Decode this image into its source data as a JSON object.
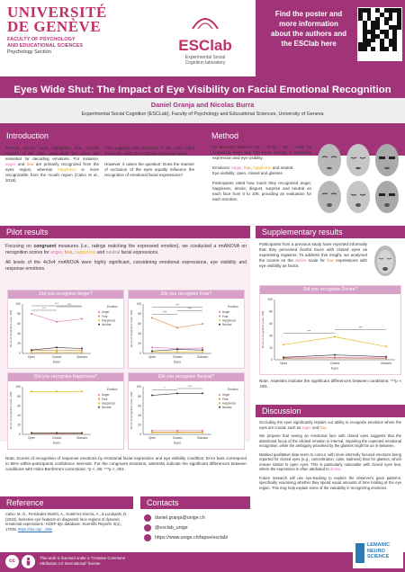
{
  "header": {
    "university": "UNIVERSITÉ\nDE GENÈVE",
    "faculty": "FACULTY OF PSYCHOLOGY\nAND EDUCATIONAL SCIENCES",
    "unit": "Psychology Section",
    "lab_name": "ESClab",
    "lab_subtitle": "Experimental Social\nCognition laboratory",
    "find_text": "Find the poster and\nmore information\nabout the authors and\nthe ESClab here"
  },
  "title": "Eyes Wide Shut: The Impact of Eye Visibility on Facial Emotional Recognition",
  "authors": "Daniel Granja and Nicolas Burra",
  "affiliation": "Experimental Social Cognition (ESCLab), Faculty of Psychology and Educational Sciences, University of Geneva",
  "sections": {
    "introduction": "Introduction",
    "method": "Method",
    "pilot": "Pilot results",
    "supplementary": "Supplementary results",
    "discussion": "Discussion",
    "reference": "Reference",
    "contacts": "Contacts"
  },
  "intro": {
    "col1": "Several studies have highlighted how specific regions of the face, particularly the eyes, are essential for decoding emotions. For instance, anger and fear are primarily recognized from the eyes region, whereas happiness is more recognizable from the mouth region (Calvo et al., 2018).",
    "col2a": "This suggests that occlusion of the eyes might impair the ability to recognise emotional faces.",
    "col2b": "However, it raises the question: Does the manner of occlusion of the eyes equally influence the recognition of emotional facial expressions?"
  },
  "method": {
    "p1": "50 bachelor students (M = 22.82 ; SD = 4.00; 39 women/11 men) saw 240 faces varying in emotional expression and eye visibility.",
    "p2_pre": "Emotions: ",
    "p2_anger": "anger",
    "p2_fear": "fear",
    "p2_happy": "happiness",
    "p2_neutral": "neutral",
    "p3": "Eye visibility: open, closed and glasses.",
    "p4": "Participants rated how much they recognized anger, happiness, desire, disgust, surprise and neutral on each face from 0 to 100, providing an evaluation for each emotion."
  },
  "pilot": {
    "p1a": "Focusing on ",
    "p1b": "congruent",
    "p1c": " measures (i.e., ratings matching the expressed emotion), we conducted a rmANOVA on recognition scores for anger, fear, happiness and neutral facial expressions.",
    "p2": "All levels of the 4x3x4 rmANOVA were highly significant, considering emotional expressions, eye visibility and response emotions.",
    "note": "Note. Scores of recognition of response emotions by emotional facial expression and eye visibility condition. Error bars correspond to 95% within-participants confidence intervals. For the congruent emotions, asterisks indicate the significant differences between conditions with Holm-Bonferroni corrections: *p < .05; ***p < .001."
  },
  "charts": {
    "ylabel": "Score of recognition (max. 100)",
    "xlabel": "Eyes",
    "legend_title": "Emotion",
    "legend": [
      "Anger",
      "Fear",
      "Happiness",
      "Neutral"
    ],
    "ticks": [
      "0",
      "20",
      "40",
      "60",
      "80",
      "100"
    ]
  },
  "chart_data": [
    {
      "type": "line",
      "title": "Did you recognise Anger?",
      "categories": [
        "Open",
        "Closed",
        "Glasses"
      ],
      "ylim": [
        0,
        100
      ],
      "series": [
        {
          "name": "Anger",
          "values": [
            80,
            64,
            70
          ]
        },
        {
          "name": "Fear",
          "values": [
            6,
            6,
            6
          ]
        },
        {
          "name": "Happiness",
          "values": [
            2,
            2,
            2
          ]
        },
        {
          "name": "Neutral",
          "values": [
            7,
            12,
            10
          ]
        }
      ],
      "annotations": [
        "***",
        "***",
        "***"
      ]
    },
    {
      "type": "line",
      "title": "Did you recognise Fear?",
      "categories": [
        "Open",
        "Closed",
        "Glasses"
      ],
      "ylim": [
        0,
        100
      ],
      "series": [
        {
          "name": "Anger",
          "values": [
            12,
            10,
            11
          ]
        },
        {
          "name": "Fear",
          "values": [
            72,
            52,
            60
          ]
        },
        {
          "name": "Happiness",
          "values": [
            3,
            3,
            3
          ]
        },
        {
          "name": "Neutral",
          "values": [
            5,
            8,
            7
          ]
        }
      ],
      "annotations": [
        "***",
        "***",
        "***"
      ]
    },
    {
      "type": "line",
      "title": "Did you recognise Happiness?",
      "categories": [
        "Open",
        "Closed",
        "Glasses"
      ],
      "ylim": [
        0,
        100
      ],
      "series": [
        {
          "name": "Anger",
          "values": [
            2,
            2,
            2
          ]
        },
        {
          "name": "Fear",
          "values": [
            2,
            2,
            2
          ]
        },
        {
          "name": "Happiness",
          "values": [
            90,
            90,
            90
          ]
        },
        {
          "name": "Neutral",
          "values": [
            3,
            3,
            3
          ]
        }
      ],
      "annotations": []
    },
    {
      "type": "line",
      "title": "Did you recognise Neutral?",
      "categories": [
        "Open",
        "Closed",
        "Glasses"
      ],
      "ylim": [
        0,
        100
      ],
      "series": [
        {
          "name": "Anger",
          "values": [
            8,
            8,
            8
          ]
        },
        {
          "name": "Fear",
          "values": [
            5,
            5,
            5
          ]
        },
        {
          "name": "Happiness",
          "values": [
            4,
            4,
            4
          ]
        },
        {
          "name": "Neutral",
          "values": [
            82,
            86,
            86
          ]
        }
      ],
      "annotations": [
        "*",
        "***"
      ]
    },
    {
      "type": "line",
      "title": "Did you recognise Desire?",
      "categories": [
        "Open",
        "Closed",
        "Glasses"
      ],
      "ylim": [
        0,
        100
      ],
      "series": [
        {
          "name": "Anger",
          "values": [
            3,
            4,
            3
          ]
        },
        {
          "name": "Fear",
          "values": [
            2,
            3,
            2
          ]
        },
        {
          "name": "Happiness",
          "values": [
            25,
            38,
            22
          ]
        },
        {
          "name": "Neutral",
          "values": [
            4,
            8,
            5
          ]
        }
      ],
      "annotations": [
        "***",
        "***"
      ]
    }
  ],
  "supplementary": {
    "text": "Participants from a previous study have reported informally that they perceived fearful faces with closed eyes as expressing orgasms. To address this insight, we analysed the scores on the desire scale for fear expressions with eye visibility as factor.",
    "note": "Note. Asterisks indicate the significant differences between conditions: ***p < .001."
  },
  "discussion": {
    "p1": "Occluding the eyes significantly impairs our ability to recognize emotions where the eyes are crucial, such as anger and fear.",
    "p2": "We propose that seeing an emotional face with closed eyes suggests that the attentional focus of the elicited emotion is internal, impairing the expected emotional recognition, while the ambiguity provoked by the glasses might be an in-between.",
    "p3": "Masked qualitative data seem to concur, with more internally focused emotions being reported for closed eyes (e.g., concentration, calm, sadness) than for glasses, which remain similar to open eyes. This is particularly noticeable with closed eyes fear, where the expression is often attributed to desire.",
    "p4": "Future research will use eye-tracking to explore the observer's gaze patterns, specifically examining whether they spend equal amounts of time looking at the eye region. This may help explain some of the variability in recognizing emotions."
  },
  "reference": {
    "text": "Calvo, M. G., Fernández-Martín, A., Gutiérrez-García, A., & Lundqvist, D. (2018). Selective eye fixations on diagnostic face regions of dynamic emotional expressions : KDEF-dyn database. Scientific Reports, 8(1), 17039.",
    "doi": "https://doi.org/.../d8n"
  },
  "contacts": {
    "email": "daniel.granja@unige.ch",
    "handle": "@esclab_unige",
    "url": "https://www.unige.ch/fapse/esclab/"
  },
  "footer": {
    "license": "This work is licensed under a \"Creative Commons\nAttribution 4.0 International\" license.",
    "lemanic": "LEMANIC\nNEURO\nSCIENCE"
  },
  "colors": {
    "accent": "#a13478",
    "anger": "#e36db3",
    "fear": "#d9813a",
    "happiness": "#e5b20a",
    "neutral": "#333333"
  }
}
